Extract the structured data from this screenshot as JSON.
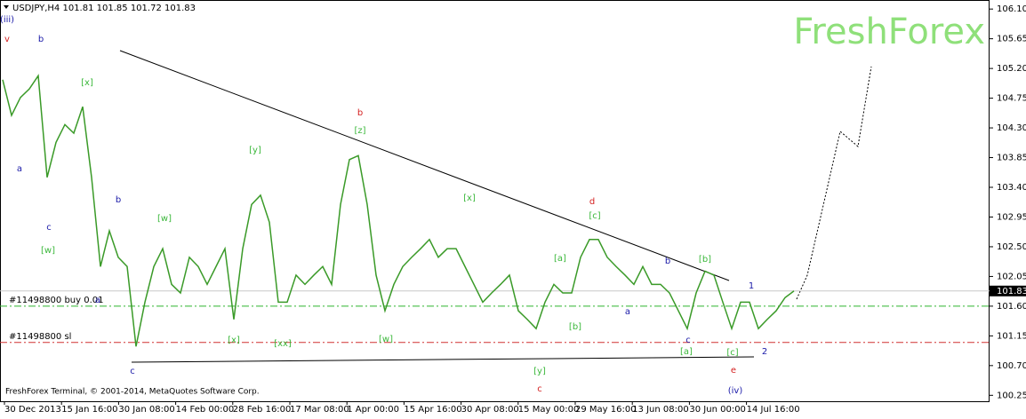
{
  "chart_data": {
    "type": "line",
    "header": "USDJPY,H4  101.81 101.85 101.72 101.83",
    "watermark": "FreshForex",
    "footer": "FreshForex Terminal, © 2001-2014, MetaQuotes Software Corp.",
    "color": "#3a9a28",
    "values": [
      105.03,
      104.49,
      104.76,
      104.89,
      105.09,
      103.55,
      104.08,
      104.35,
      104.22,
      104.62,
      103.55,
      102.2,
      102.74,
      102.34,
      102.2,
      100.99,
      101.66,
      102.2,
      102.47,
      101.93,
      101.8,
      102.34,
      102.2,
      101.93,
      102.2,
      102.47,
      101.4,
      102.47,
      103.14,
      103.28,
      102.87,
      101.66,
      101.66,
      102.07,
      101.93,
      102.07,
      102.2,
      101.93,
      103.14,
      103.82,
      103.88,
      103.14,
      102.07,
      101.53,
      101.93,
      102.2,
      102.34,
      102.47,
      102.61,
      102.34,
      102.47,
      102.47,
      102.2,
      101.93,
      101.66,
      101.8,
      101.93,
      102.07,
      101.53,
      101.4,
      101.26,
      101.66,
      101.93,
      101.8,
      101.8,
      102.34,
      102.61,
      102.61,
      102.34,
      102.2,
      102.07,
      101.93,
      102.2,
      101.93,
      101.93,
      101.8,
      101.53,
      101.26,
      101.8,
      102.13,
      102.07,
      101.66,
      101.26,
      101.66,
      101.66,
      101.26,
      101.4,
      101.53,
      101.73,
      101.83
    ],
    "x_labels": [
      "30 Dec 2013",
      "15 Jan 16:00",
      "30 Jan 08:00",
      "14 Feb 00:00",
      "28 Feb 16:00",
      "17 Mar 08:00",
      "1 Apr 00:00",
      "15 Apr 16:00",
      "30 Apr 08:00",
      "15 May 00:00",
      "29 May 16:00",
      "13 Jun 08:00",
      "30 Jun 00:00",
      "14 Jul 16:00"
    ],
    "ylim": [
      100.16,
      106.21
    ],
    "yticks": [
      {
        "value": 106.1,
        "label": "106.10"
      },
      {
        "value": 105.65,
        "label": "105.65"
      },
      {
        "value": 105.2,
        "label": "105.20"
      },
      {
        "value": 104.75,
        "label": "104.75"
      },
      {
        "value": 104.3,
        "label": "104.30"
      },
      {
        "value": 103.85,
        "label": "103.85"
      },
      {
        "value": 103.4,
        "label": "103.40"
      },
      {
        "value": 102.95,
        "label": "102.95"
      },
      {
        "value": 102.5,
        "label": "102.50"
      },
      {
        "value": 102.05,
        "label": "102.05"
      },
      {
        "value": 101.6,
        "label": "101.60"
      },
      {
        "value": 101.15,
        "label": "101.15"
      },
      {
        "value": 100.7,
        "label": "100.70"
      },
      {
        "value": 100.25,
        "label": "100.25"
      }
    ],
    "last_price": 101.83,
    "levels": [
      {
        "label": "#11498800 buy 0.01",
        "value": 101.6,
        "color": "#2db52d"
      },
      {
        "label": "#11498800 sl",
        "value": 101.05,
        "color": "#d03030"
      }
    ],
    "annotations": [
      {
        "text": "(iii)",
        "color": "#1a1aa8"
      },
      {
        "text": "v",
        "color": "#d42020"
      },
      {
        "text": "b",
        "color": "#1a1aa8"
      },
      {
        "text": "a",
        "color": "#1a1aa8"
      },
      {
        "text": "c",
        "color": "#1a1aa8"
      },
      {
        "text": "[w]",
        "color": "#3cb83c"
      },
      {
        "text": "[x]",
        "color": "#3cb83c"
      },
      {
        "text": "a",
        "color": "#1a1aa8"
      },
      {
        "text": "b",
        "color": "#1a1aa8"
      },
      {
        "text": "c",
        "color": "#1a1aa8"
      },
      {
        "text": "[w]",
        "color": "#3cb83c"
      },
      {
        "text": "[y]",
        "color": "#3cb83c"
      },
      {
        "text": "[x]",
        "color": "#3cb83c"
      },
      {
        "text": "[xx]",
        "color": "#3cb83c"
      },
      {
        "text": "b",
        "color": "#d42020"
      },
      {
        "text": "[z]",
        "color": "#3cb83c"
      },
      {
        "text": "[w]",
        "color": "#3cb83c"
      },
      {
        "text": "[x]",
        "color": "#3cb83c"
      },
      {
        "text": "d",
        "color": "#d42020"
      },
      {
        "text": "[c]",
        "color": "#3cb83c"
      },
      {
        "text": "[a]",
        "color": "#3cb83c"
      },
      {
        "text": "[b]",
        "color": "#3cb83c"
      },
      {
        "text": "[y]",
        "color": "#3cb83c"
      },
      {
        "text": "c",
        "color": "#d42020"
      },
      {
        "text": "a",
        "color": "#1a1aa8"
      },
      {
        "text": "b",
        "color": "#1a1aa8"
      },
      {
        "text": "c",
        "color": "#1a1aa8"
      },
      {
        "text": "[a]",
        "color": "#3cb83c"
      },
      {
        "text": "[b]",
        "color": "#3cb83c"
      },
      {
        "text": "[c]",
        "color": "#3cb83c"
      },
      {
        "text": "e",
        "color": "#d42020"
      },
      {
        "text": "1",
        "color": "#1a1aa8"
      },
      {
        "text": "2",
        "color": "#1a1aa8"
      },
      {
        "text": "(iv)",
        "color": "#1a1aa8"
      }
    ]
  }
}
